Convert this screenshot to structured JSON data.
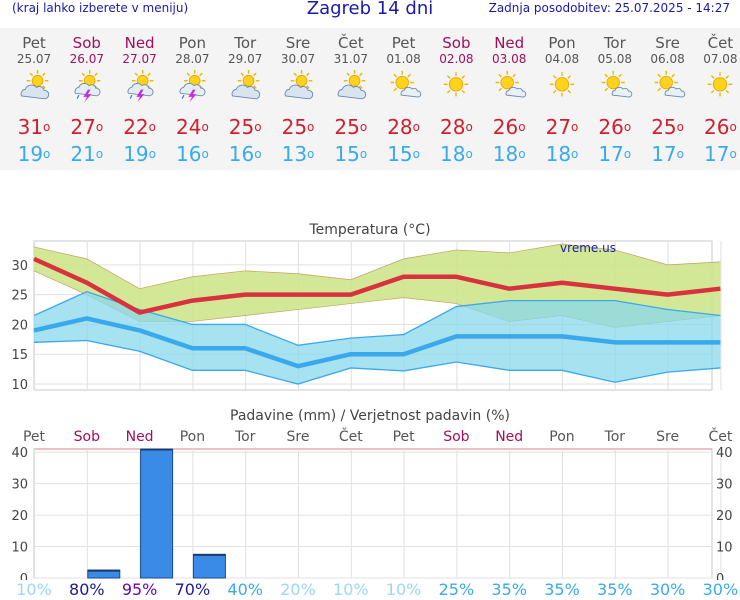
{
  "header": {
    "left_note": "(kraj lahko izberete v meniju)",
    "title": "Zagreb 14 dni",
    "updated": "Zadnja posodobitev: 25.07.2025 - 14:27"
  },
  "days": [
    {
      "name": "Pet",
      "date": "25.07",
      "weekend": false,
      "icon": "partly-cloudy-icon",
      "tmax": "31",
      "tmin": "19",
      "precip": "10%"
    },
    {
      "name": "Sob",
      "date": "26.07",
      "weekend": true,
      "icon": "thunderstorm-icon",
      "tmax": "27",
      "tmin": "21",
      "precip": "80%"
    },
    {
      "name": "Ned",
      "date": "27.07",
      "weekend": true,
      "icon": "thunderstorm-icon",
      "tmax": "22",
      "tmin": "19",
      "precip": "95%"
    },
    {
      "name": "Pon",
      "date": "28.07",
      "weekend": false,
      "icon": "thunderstorm-icon",
      "tmax": "24",
      "tmin": "16",
      "precip": "70%"
    },
    {
      "name": "Tor",
      "date": "29.07",
      "weekend": false,
      "icon": "partly-cloudy-icon",
      "tmax": "25",
      "tmin": "16",
      "precip": "40%"
    },
    {
      "name": "Sre",
      "date": "30.07",
      "weekend": false,
      "icon": "partly-cloudy-icon",
      "tmax": "25",
      "tmin": "13",
      "precip": "20%"
    },
    {
      "name": "Čet",
      "date": "31.07",
      "weekend": false,
      "icon": "partly-cloudy-icon",
      "tmax": "25",
      "tmin": "15",
      "precip": "10%"
    },
    {
      "name": "Pet",
      "date": "01.08",
      "weekend": false,
      "icon": "mostly-sunny-icon",
      "tmax": "28",
      "tmin": "15",
      "precip": "10%"
    },
    {
      "name": "Sob",
      "date": "02.08",
      "weekend": true,
      "icon": "sunny-icon",
      "tmax": "28",
      "tmin": "18",
      "precip": "25%"
    },
    {
      "name": "Ned",
      "date": "03.08",
      "weekend": true,
      "icon": "mostly-sunny-icon",
      "tmax": "26",
      "tmin": "18",
      "precip": "35%"
    },
    {
      "name": "Pon",
      "date": "04.08",
      "weekend": false,
      "icon": "sunny-icon",
      "tmax": "27",
      "tmin": "18",
      "precip": "35%"
    },
    {
      "name": "Tor",
      "date": "05.08",
      "weekend": false,
      "icon": "mostly-sunny-icon",
      "tmax": "26",
      "tmin": "17",
      "precip": "35%"
    },
    {
      "name": "Sre",
      "date": "06.08",
      "weekend": false,
      "icon": "mostly-sunny-icon",
      "tmax": "25",
      "tmin": "17",
      "precip": "30%"
    },
    {
      "name": "Čet",
      "date": "07.08",
      "weekend": false,
      "icon": "sunny-icon",
      "tmax": "26",
      "tmin": "17",
      "precip": "30%"
    }
  ],
  "colors": {
    "max_line": "#d8323e",
    "min_line": "#3aa8ec",
    "max_band": "#cde68c",
    "min_band": "#8ad8ec",
    "bar": "#3a8ae8",
    "weekend": "#a0105a",
    "text": "#555555",
    "prob_low": "#9ad8f4",
    "prob_mid": "#3aaae8",
    "prob_high": "#1a1a9e",
    "prob_top": "#6a0aa8"
  },
  "chart_data": [
    {
      "type": "line",
      "title": "Temperatura (°C)",
      "watermark": "vreme.us",
      "ylim": [
        9,
        34
      ],
      "yticks": [
        10,
        15,
        20,
        25,
        30
      ],
      "series": [
        {
          "name": "max",
          "values": [
            31,
            27,
            22,
            24,
            25,
            25,
            25,
            28,
            28,
            26,
            27,
            26,
            25,
            26
          ],
          "band_low": [
            29,
            25,
            20.5,
            20.5,
            21.5,
            22.5,
            23.5,
            24.5,
            23.5,
            20.5,
            21.5,
            19.5,
            20.5,
            21.5
          ],
          "band_high": [
            33,
            31,
            26,
            28,
            29,
            28.5,
            27.5,
            31,
            32.5,
            32,
            33.5,
            32.5,
            30,
            30.5
          ]
        },
        {
          "name": "min",
          "values": [
            19,
            21,
            19,
            16,
            16,
            13,
            15,
            15,
            18,
            18,
            18,
            17,
            17,
            17
          ],
          "band_low": [
            17,
            17.3,
            15.5,
            12.3,
            12.3,
            10,
            12.7,
            12.2,
            13.7,
            12.3,
            12.3,
            10.3,
            12,
            12.7
          ],
          "band_high": [
            21.5,
            25.5,
            22.5,
            20,
            20,
            16.5,
            17.7,
            18.3,
            23,
            24,
            24,
            24,
            22.5,
            21.5
          ]
        }
      ]
    },
    {
      "type": "bar",
      "title": "Padavine (mm) / Verjetnost padavin (%)",
      "ylim": [
        0,
        41
      ],
      "yticks": [
        0,
        10,
        20,
        30,
        40
      ],
      "values": [
        0,
        2.5,
        41,
        7.5,
        0,
        0,
        0,
        0,
        0,
        0,
        0,
        0,
        0,
        0
      ]
    }
  ]
}
